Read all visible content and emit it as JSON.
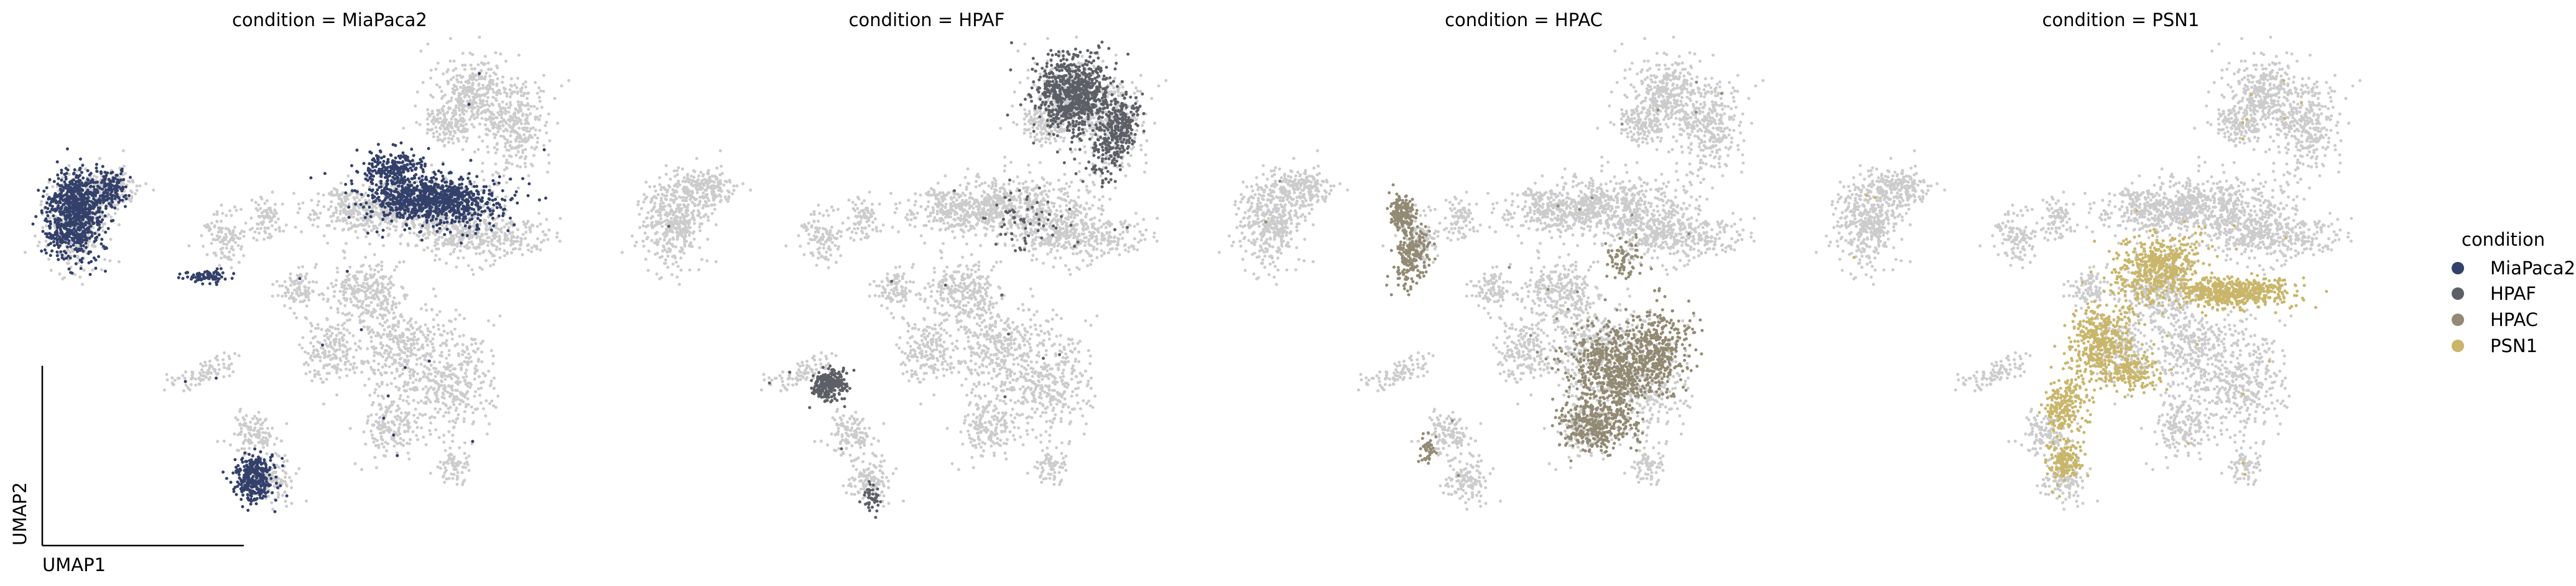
{
  "chart_data": {
    "type": "scatter",
    "embedding": "UMAP",
    "xlabel": "UMAP1",
    "ylabel": "UMAP2",
    "panels": [
      {
        "title": "condition = MiaPaca2",
        "highlight": "MiaPaca2"
      },
      {
        "title": "condition = HPAF",
        "highlight": "HPAF"
      },
      {
        "title": "condition = HPAC",
        "highlight": "HPAC"
      },
      {
        "title": "condition = PSN1",
        "highlight": "PSN1"
      }
    ],
    "legend": {
      "title": "condition",
      "placement": "right",
      "entries": [
        {
          "label": "MiaPaca2",
          "color": "#33406a"
        },
        {
          "label": "HPAF",
          "color": "#5d5f66"
        },
        {
          "label": "HPAC",
          "color": "#928a73"
        },
        {
          "label": "PSN1",
          "color": "#c9b66b"
        }
      ]
    },
    "background_color": "#cccccc",
    "grid": false
  }
}
